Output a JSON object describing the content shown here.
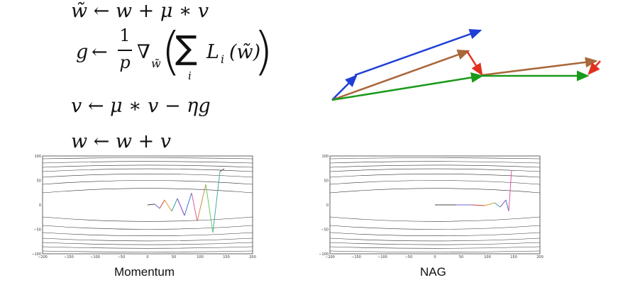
{
  "equations": {
    "eq1": {
      "lhs": "w̃",
      "arrow": "←",
      "rhs": "w + μ ∗ v"
    },
    "eq2": {
      "lhs": "g",
      "arrow": "←",
      "num": "1",
      "den": "p",
      "nabla": "∇",
      "nabla_sub": "w̃",
      "sum": "∑",
      "sum_sub": "i",
      "L": "L",
      "L_sub": "i",
      "arg": "(w̃)"
    },
    "eq3": {
      "text": "v ← μ ∗ v − ηg"
    },
    "eq4": {
      "text": "w ← w + v"
    }
  },
  "vector_diagram": {
    "colors": {
      "blue": "#1f3fd6",
      "brown": "#a9683b",
      "green": "#1a9a1a",
      "red": "#e2301c"
    }
  },
  "plots": {
    "momentum": {
      "caption": "Momentum",
      "x_ticks": [
        "−200",
        "−150",
        "−100",
        "−50",
        "0",
        "50",
        "100",
        "150",
        "200"
      ],
      "y_ticks": [
        "100",
        "50",
        "0",
        "−50",
        "−100"
      ],
      "xlim": [
        -200,
        200
      ],
      "ylim": [
        -100,
        100
      ]
    },
    "nag": {
      "caption": "NAG",
      "x_ticks": [
        "−200",
        "−150",
        "−100",
        "−50",
        "0",
        "50",
        "100",
        "150",
        "200"
      ],
      "y_ticks": [
        "100",
        "50",
        "0",
        "−50",
        "−100"
      ],
      "xlim": [
        -200,
        200
      ],
      "ylim": [
        -100,
        100
      ]
    }
  }
}
